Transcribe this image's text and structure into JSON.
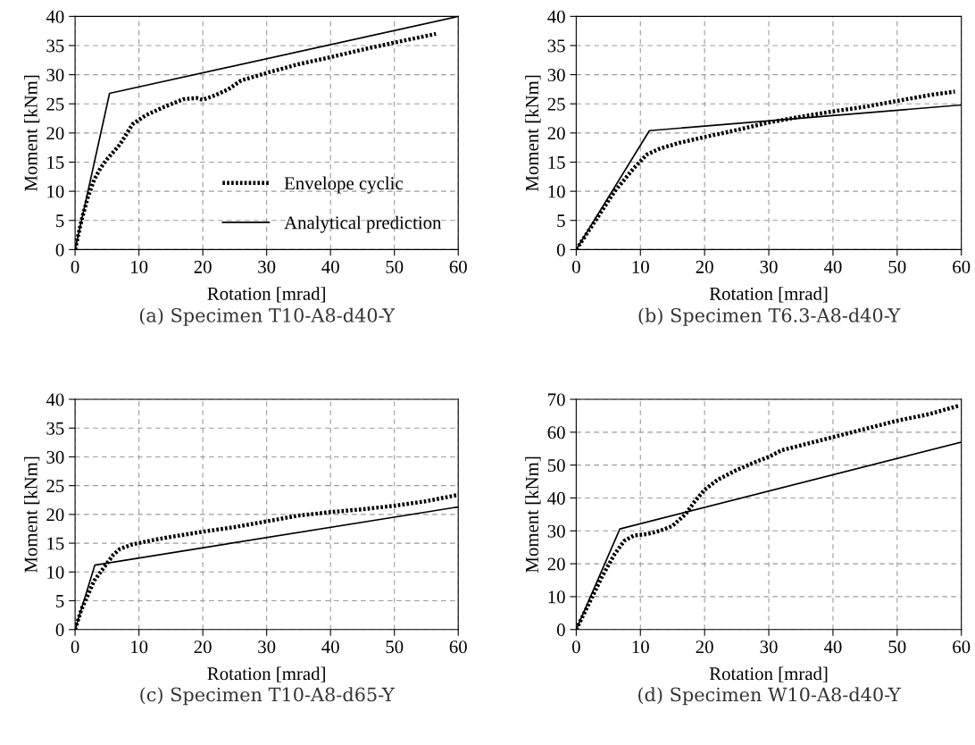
{
  "chart_data": [
    {
      "type": "line",
      "title": "(a) Specimen T10-A8-d40-Y",
      "xlabel": "Rotation [mrad]",
      "ylabel": "Moment [kNm]",
      "xlim": [
        0,
        60
      ],
      "xticks": [
        0,
        10,
        20,
        30,
        40,
        50,
        60
      ],
      "ylim": [
        0,
        40
      ],
      "yticks": [
        0,
        5,
        10,
        15,
        20,
        25,
        30,
        35,
        40
      ],
      "grid": true,
      "legend": "bottom right",
      "series": [
        {
          "name": "Envelope cyclic",
          "color": "#000000",
          "line_style": "dotted",
          "x": [
            0,
            1,
            2,
            3,
            4,
            5,
            7,
            9,
            11,
            14,
            17,
            19,
            20,
            22,
            24,
            26,
            30,
            35,
            40,
            45,
            50,
            56.5
          ],
          "values": [
            0,
            5,
            9,
            12,
            14,
            15.5,
            18,
            21.5,
            23,
            24.5,
            25.8,
            26,
            25.7,
            26.5,
            27.5,
            29,
            30.3,
            31.8,
            33,
            34.3,
            35.5,
            37
          ]
        },
        {
          "name": "Analytical prediction",
          "color": "#000000",
          "line_style": "solid",
          "x": [
            0,
            5.4,
            60
          ],
          "values": [
            0,
            26.8,
            40
          ]
        }
      ]
    },
    {
      "type": "line",
      "title": "(b) Specimen T6.3-A8-d40-Y",
      "xlabel": "Rotation [mrad]",
      "ylabel": "Moment [kNm]",
      "xlim": [
        0,
        60
      ],
      "xticks": [
        0,
        10,
        20,
        30,
        40,
        50,
        60
      ],
      "ylim": [
        0,
        40
      ],
      "yticks": [
        0,
        5,
        10,
        15,
        20,
        25,
        30,
        35,
        40
      ],
      "grid": true,
      "series": [
        {
          "color": "#000000",
          "line_style": "dotted",
          "x": [
            0,
            3,
            6,
            9,
            11,
            13,
            16,
            20,
            25,
            30,
            35,
            40,
            45,
            50,
            55,
            59
          ],
          "values": [
            0,
            5,
            10,
            14,
            16.3,
            17.3,
            18.3,
            19.3,
            20.5,
            21.8,
            22.8,
            23.7,
            24.5,
            25.5,
            26.5,
            27.1
          ]
        },
        {
          "color": "#000000",
          "line_style": "solid",
          "x": [
            0,
            11.4,
            60
          ],
          "values": [
            0,
            20.4,
            24.8
          ]
        }
      ]
    },
    {
      "type": "line",
      "title": "(c) Specimen T10-A8-d65-Y",
      "xlabel": "Rotation [mrad]",
      "ylabel": "Moment [kNm]",
      "xlim": [
        0,
        60
      ],
      "xticks": [
        0,
        10,
        20,
        30,
        40,
        50,
        60
      ],
      "ylim": [
        0,
        40
      ],
      "yticks": [
        0,
        5,
        10,
        15,
        20,
        25,
        30,
        35,
        40
      ],
      "grid": true,
      "series": [
        {
          "color": "#000000",
          "line_style": "dotted",
          "x": [
            0,
            1,
            2,
            3,
            4,
            5,
            6,
            7,
            9,
            12,
            15,
            20,
            25,
            30,
            35,
            40,
            45,
            50,
            55,
            60
          ],
          "values": [
            0,
            3.5,
            6,
            8.5,
            10,
            11.5,
            13,
            14,
            14.8,
            15.5,
            16.1,
            17,
            17.8,
            18.8,
            19.8,
            20.4,
            20.9,
            21.5,
            22.3,
            23.4
          ]
        },
        {
          "color": "#000000",
          "line_style": "solid",
          "x": [
            0,
            3.1,
            60
          ],
          "values": [
            0,
            11.2,
            21.3
          ]
        }
      ]
    },
    {
      "type": "line",
      "title": "(d) Specimen W10-A8-d40-Y",
      "xlabel": "Rotation [mrad]",
      "ylabel": "Moment [kNm]",
      "xlim": [
        0,
        60
      ],
      "xticks": [
        0,
        10,
        20,
        30,
        40,
        50,
        60
      ],
      "ylim": [
        0,
        70
      ],
      "yticks": [
        0,
        10,
        20,
        30,
        40,
        50,
        60,
        70
      ],
      "grid": true,
      "series": [
        {
          "color": "#000000",
          "line_style": "dotted",
          "x": [
            0,
            2,
            4,
            6,
            7.5,
            9,
            11,
            13,
            15,
            17,
            18.5,
            20,
            22,
            25,
            28,
            30,
            32,
            35,
            40,
            45,
            50,
            55,
            59.5
          ],
          "values": [
            0,
            8,
            16,
            23,
            27,
            28.6,
            29,
            30,
            31.5,
            35,
            39,
            42.5,
            45.5,
            48.5,
            51,
            52.5,
            54.5,
            56,
            58.5,
            61,
            63.5,
            65.5,
            68
          ]
        },
        {
          "color": "#000000",
          "line_style": "solid",
          "x": [
            0,
            6.8,
            60
          ],
          "values": [
            0,
            30.6,
            57
          ]
        }
      ]
    }
  ]
}
